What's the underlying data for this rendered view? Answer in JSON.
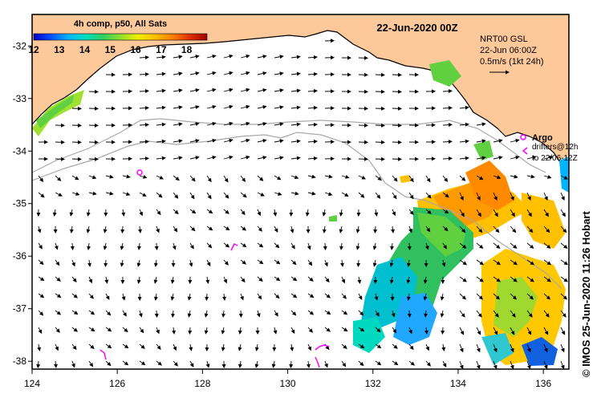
{
  "map": {
    "title": "22-Jun-2020 00Z",
    "colorbar": {
      "title": "4h comp, p50, All Sats",
      "ticks": [
        "12",
        "13",
        "14",
        "15",
        "16",
        "17",
        "18"
      ],
      "range": [
        12,
        18.8
      ],
      "colors": [
        "#0000c8",
        "#0050ff",
        "#00b4ff",
        "#00e0c0",
        "#30d060",
        "#90e030",
        "#f0f000",
        "#ffc000",
        "#ff8000",
        "#e03000",
        "#a00000"
      ]
    },
    "current_legend": {
      "line1": "NRT00 GSL",
      "line2": "22-Jun 06:00Z",
      "line3": "0.5m/s (1kt 24h)"
    },
    "argo_legend": {
      "title": "Argo",
      "line1": "drifters@12h",
      "line2": "to 22/06-12Z"
    },
    "credit": "© IMOS 25-Jun-2020 11:26 Hobart",
    "x_axis": {
      "ticks": [
        "124",
        "126",
        "128",
        "130",
        "132",
        "134",
        "136"
      ],
      "values": [
        124,
        126,
        128,
        130,
        132,
        134,
        136
      ],
      "range": [
        124,
        136.6
      ]
    },
    "y_axis": {
      "ticks": [
        "-32",
        "-33",
        "-34",
        "-35",
        "-36",
        "-37",
        "-38"
      ],
      "values": [
        -32,
        -33,
        -34,
        -35,
        -36,
        -37,
        -38
      ],
      "range": [
        -38.15,
        -31.4
      ]
    },
    "colors": {
      "land": "#fdc89a",
      "coast": "#000000",
      "isobath": "#a8a8a8",
      "argo": "#ff00ff",
      "arrow": "#000000"
    }
  }
}
